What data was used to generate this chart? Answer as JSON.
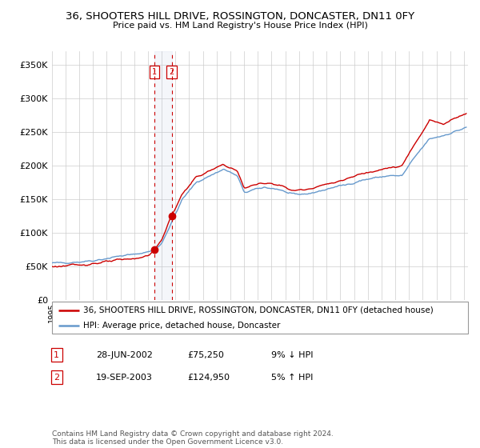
{
  "title1": "36, SHOOTERS HILL DRIVE, ROSSINGTON, DONCASTER, DN11 0FY",
  "title2": "Price paid vs. HM Land Registry's House Price Index (HPI)",
  "legend_line1": "36, SHOOTERS HILL DRIVE, ROSSINGTON, DONCASTER, DN11 0FY (detached house)",
  "legend_line2": "HPI: Average price, detached house, Doncaster",
  "sale1_date": "28-JUN-2002",
  "sale1_price": "£75,250",
  "sale1_pct": "9% ↓ HPI",
  "sale2_date": "19-SEP-2003",
  "sale2_price": "£124,950",
  "sale2_pct": "5% ↑ HPI",
  "footer": "Contains HM Land Registry data © Crown copyright and database right 2024.\nThis data is licensed under the Open Government Licence v3.0.",
  "red_color": "#cc0000",
  "blue_color": "#6699cc",
  "bg_color": "#ffffff",
  "grid_color": "#cccccc",
  "sale1_x": 2002.49,
  "sale2_x": 2003.72,
  "sale1_marker_y": 75250,
  "sale2_marker_y": 124950,
  "ylim": [
    0,
    370000
  ],
  "xlim_start": 1995,
  "xlim_end": 2025.3
}
